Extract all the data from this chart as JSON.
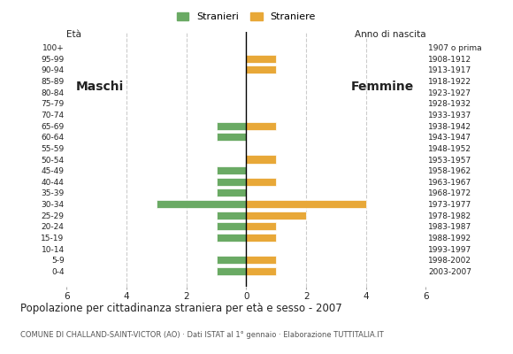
{
  "age_groups": [
    "100+",
    "95-99",
    "90-94",
    "85-89",
    "80-84",
    "75-79",
    "70-74",
    "65-69",
    "60-64",
    "55-59",
    "50-54",
    "45-49",
    "40-44",
    "35-39",
    "30-34",
    "25-29",
    "20-24",
    "15-19",
    "10-14",
    "5-9",
    "0-4"
  ],
  "birth_years": [
    "1907 o prima",
    "1908-1912",
    "1913-1917",
    "1918-1922",
    "1923-1927",
    "1928-1932",
    "1933-1937",
    "1938-1942",
    "1943-1947",
    "1948-1952",
    "1953-1957",
    "1958-1962",
    "1963-1967",
    "1968-1972",
    "1973-1977",
    "1978-1982",
    "1983-1987",
    "1988-1992",
    "1993-1997",
    "1998-2002",
    "2003-2007"
  ],
  "males": [
    0,
    0,
    0,
    0,
    0,
    0,
    0,
    1,
    1,
    0,
    0,
    1,
    1,
    1,
    3,
    1,
    1,
    1,
    0,
    1,
    1
  ],
  "females": [
    0,
    1,
    1,
    0,
    0,
    0,
    0,
    1,
    0,
    0,
    1,
    0,
    1,
    0,
    4,
    2,
    1,
    1,
    0,
    1,
    1
  ],
  "male_color": "#6aaa64",
  "female_color": "#e8a838",
  "bar_height": 0.72,
  "xlim": 6,
  "title": "Popolazione per cittadinanza straniera per età e sesso - 2007",
  "subtitle": "COMUNE DI CHALLAND-SAINT-VICTOR (AO) · Dati ISTAT al 1° gennaio · Elaborazione TUTTITALIA.IT",
  "legend_male": "Stranieri",
  "legend_female": "Straniere",
  "label_maschi": "Maschi",
  "label_femmine": "Femmine",
  "age_label": "Età",
  "birth_label": "Anno di nascita",
  "grid_color": "#cccccc",
  "background_color": "#ffffff",
  "text_color": "#222222",
  "subtitle_color": "#555555"
}
